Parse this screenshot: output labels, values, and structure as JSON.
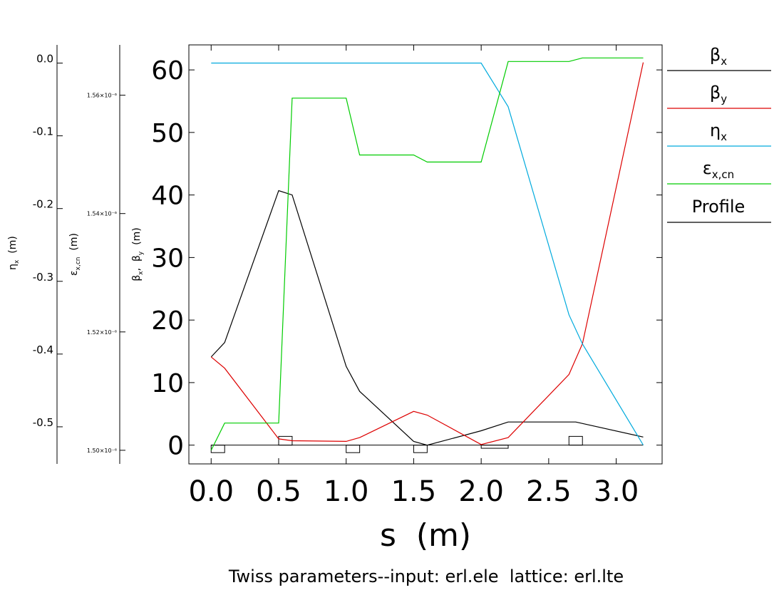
{
  "chart_data": {
    "type": "line",
    "title": "Twiss parameters--input: erl.ele  lattice: erl.lte",
    "xlabel": "s  (m)",
    "ylabel": "βx, βy (m)",
    "xlim": [
      -0.165,
      3.34
    ],
    "ylim": [
      -3,
      64
    ],
    "x_ticks": [
      "0.0",
      "0.5",
      "1.0",
      "1.5",
      "2.0",
      "2.5",
      "3.0"
    ],
    "x_tick_values": [
      0,
      0.5,
      1.0,
      1.5,
      2.0,
      2.5,
      3.0
    ],
    "y_ticks": [
      "0",
      "10",
      "20",
      "30",
      "40",
      "50",
      "60"
    ],
    "y_tick_values": [
      0,
      10,
      20,
      30,
      40,
      50,
      60
    ],
    "series": [
      {
        "name": "βx",
        "color": "#000000",
        "x": [
          0.0,
          0.1,
          0.5,
          0.6,
          1.0,
          1.1,
          1.5,
          1.6,
          2.0,
          2.2,
          2.7,
          3.2
        ],
        "y": [
          14.1,
          16.4,
          40.7,
          40.0,
          12.6,
          8.6,
          0.6,
          0.0,
          2.3,
          3.7,
          3.7,
          1.3
        ]
      },
      {
        "name": "βy",
        "color": "#dd0000",
        "x": [
          0.0,
          0.1,
          0.5,
          0.6,
          1.0,
          1.1,
          1.5,
          1.6,
          2.0,
          2.2,
          2.65,
          2.75,
          3.2
        ],
        "y": [
          14.1,
          12.3,
          1.0,
          0.7,
          0.6,
          1.2,
          5.4,
          4.8,
          0.1,
          1.2,
          11.3,
          16.2,
          61.2
        ]
      },
      {
        "name": "ηx",
        "color": "#00aadd",
        "axis": "eta",
        "x": [
          0.0,
          2.0,
          2.2,
          2.65,
          2.75,
          3.2
        ],
        "y": [
          0.0,
          0.0,
          -0.06,
          -0.346,
          -0.386,
          -0.525
        ]
      },
      {
        "name": "εx,cn",
        "color": "#00cc00",
        "axis": "emit",
        "x": [
          0.0,
          0.1,
          0.5,
          0.6,
          1.0,
          1.1,
          1.5,
          1.6,
          2.0,
          2.2,
          2.65,
          2.75,
          3.2
        ],
        "y": [
          1.5e-06,
          1.5046e-06,
          1.5046e-06,
          1.5595e-06,
          1.5595e-06,
          1.5499e-06,
          1.5499e-06,
          1.5487e-06,
          1.5487e-06,
          1.5657e-06,
          1.5657e-06,
          1.5663e-06,
          1.5663e-06
        ]
      }
    ],
    "profile": {
      "name": "Profile",
      "elements": [
        {
          "s0": 0.0,
          "s1": 0.1,
          "dir": "down",
          "h": 1.2
        },
        {
          "s0": 0.5,
          "s1": 0.6,
          "dir": "up",
          "h": 1.4
        },
        {
          "s0": 1.0,
          "s1": 1.1,
          "dir": "down",
          "h": 1.2
        },
        {
          "s0": 1.5,
          "s1": 1.6,
          "dir": "down",
          "h": 1.2
        },
        {
          "s0": 2.0,
          "s1": 2.2,
          "dir": "down",
          "h": 0.5
        },
        {
          "s0": 2.65,
          "s1": 2.75,
          "dir": "up",
          "h": 1.4
        }
      ]
    },
    "eta_axis": {
      "label": "ηx (m)",
      "ylim": [
        -0.551,
        0.025
      ],
      "ticks": [
        "0.0",
        "-0.1",
        "-0.2",
        "-0.3",
        "-0.4",
        "-0.5"
      ],
      "tick_values": [
        0.0,
        -0.1,
        -0.2,
        -0.3,
        -0.4,
        -0.5
      ]
    },
    "emit_axis": {
      "label": "εx,cn (m)",
      "ylim": [
        1.4977e-06,
        1.5685e-06
      ],
      "ticks": [
        "1.50×10⁻⁶",
        "1.52×10⁻⁶",
        "1.54×10⁻⁶",
        "1.56×10⁻⁶"
      ],
      "tick_values": [
        1.5e-06,
        1.52e-06,
        1.54e-06,
        1.56e-06
      ]
    },
    "legend": {
      "placement": "right",
      "entries": [
        "βx",
        "βy",
        "ηx",
        "εx,cn",
        "Profile"
      ],
      "colors": [
        "#000000",
        "#dd0000",
        "#00aadd",
        "#00cc00",
        "#000000"
      ]
    }
  }
}
